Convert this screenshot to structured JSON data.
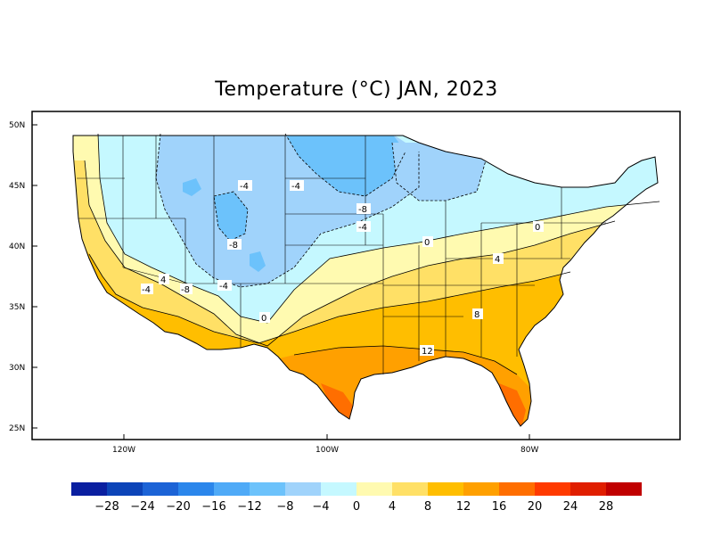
{
  "title": "Temperature (°C) JAN, 2023",
  "latitude_labels": [
    "50N",
    "45N",
    "40N",
    "35N",
    "30N",
    "25N"
  ],
  "longitude_labels": [
    "120W",
    "100W",
    "80W"
  ],
  "contour_labels": [
    "-4",
    "-4",
    "-8",
    "-4",
    "-8",
    "-4",
    "-8",
    "-4",
    "0",
    "4",
    "0",
    "0",
    "4",
    "8",
    "12"
  ],
  "colorbar": {
    "colors": [
      "#0a1fa0",
      "#0c44b8",
      "#1c63d6",
      "#2b86eb",
      "#4faaf7",
      "#6cc2fb",
      "#a0d3fb",
      "#c5f8ff",
      "#fffab0",
      "#ffe066",
      "#ffbe00",
      "#ffa000",
      "#ff6e00",
      "#ff3a00",
      "#e01e00",
      "#c00000"
    ],
    "labels": [
      "−28",
      "−24",
      "−20",
      "−16",
      "−12",
      "−8",
      "−4",
      "0",
      "4",
      "8",
      "12",
      "16",
      "20",
      "24",
      "28"
    ]
  },
  "chart_data": {
    "type": "heatmap",
    "title": "Temperature (°C) JAN, 2023",
    "variable": "Temperature",
    "units": "°C",
    "period": "JAN, 2023",
    "levels": [
      -28,
      -24,
      -20,
      -16,
      -12,
      -8,
      -4,
      0,
      4,
      8,
      12,
      16,
      20,
      24,
      28
    ],
    "latitude_ticks": [
      "50N",
      "45N",
      "40N",
      "35N",
      "30N",
      "25N"
    ],
    "longitude_ticks": [
      "120W",
      "100W",
      "80W"
    ]
  }
}
